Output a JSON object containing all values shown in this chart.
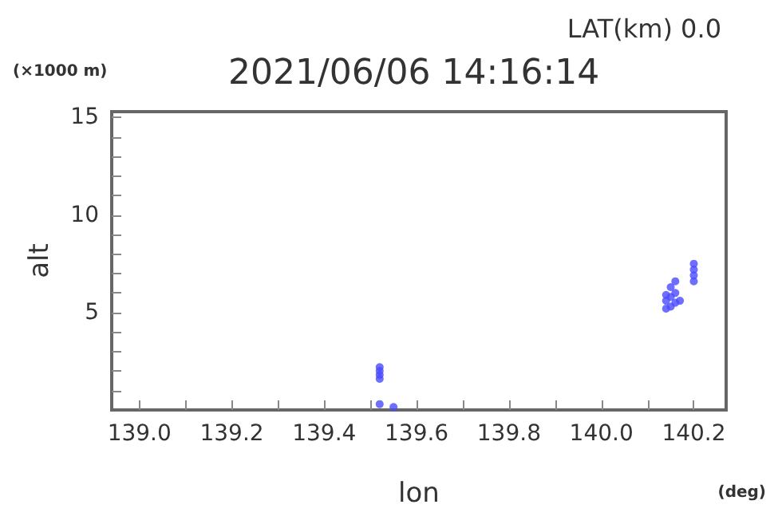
{
  "chart_data": {
    "type": "scatter",
    "title": "2021/06/06 14:16:14",
    "xlabel": "lon",
    "ylabel": "alt",
    "annotations": [
      "LAT(km) 0.0",
      "(×1000 m)",
      "(deg)"
    ],
    "x": [
      139.52,
      139.52,
      139.52,
      139.52,
      139.52,
      139.55,
      140.14,
      140.14,
      140.14,
      140.15,
      140.15,
      140.15,
      140.16,
      140.16,
      140.16,
      140.17,
      140.2,
      140.2,
      140.2,
      140.2
    ],
    "values": [
      1.6,
      1.8,
      2.0,
      2.2,
      0.3,
      0.15,
      5.2,
      5.6,
      5.9,
      5.3,
      5.8,
      6.3,
      5.5,
      6.0,
      6.6,
      5.6,
      6.6,
      6.9,
      7.2,
      7.5
    ],
    "color": "#4a4aff",
    "marker": "circle",
    "grid": false,
    "xlim": [
      138.94,
      140.27
    ],
    "xticks": [
      {
        "value": 139,
        "label": "139.0"
      },
      {
        "value": 139.1,
        "label": null
      },
      {
        "value": 139.2,
        "label": "139.2"
      },
      {
        "value": 139.3,
        "label": null
      },
      {
        "value": 139.4,
        "label": "139.4"
      },
      {
        "value": 139.5,
        "label": null
      },
      {
        "value": 139.6,
        "label": "139.6"
      },
      {
        "value": 139.7,
        "label": null
      },
      {
        "value": 139.8,
        "label": "139.8"
      },
      {
        "value": 139.9,
        "label": null
      },
      {
        "value": 140,
        "label": "140.0"
      },
      {
        "value": 140.1,
        "label": null
      },
      {
        "value": 140.2,
        "label": "140.2"
      }
    ],
    "ylim": [
      0,
      15.3
    ],
    "yticks": [
      {
        "value": 1,
        "label": null
      },
      {
        "value": 2,
        "label": null
      },
      {
        "value": 3,
        "label": null
      },
      {
        "value": 4,
        "label": null
      },
      5,
      {
        "value": 6,
        "label": null
      },
      {
        "value": 7,
        "label": null
      },
      {
        "value": 8,
        "label": null
      },
      {
        "value": 9,
        "label": null
      },
      10,
      {
        "value": 11,
        "label": null
      },
      {
        "value": 12,
        "label": null
      },
      {
        "value": 13,
        "label": null
      },
      {
        "value": 14,
        "label": null
      },
      15
    ]
  }
}
